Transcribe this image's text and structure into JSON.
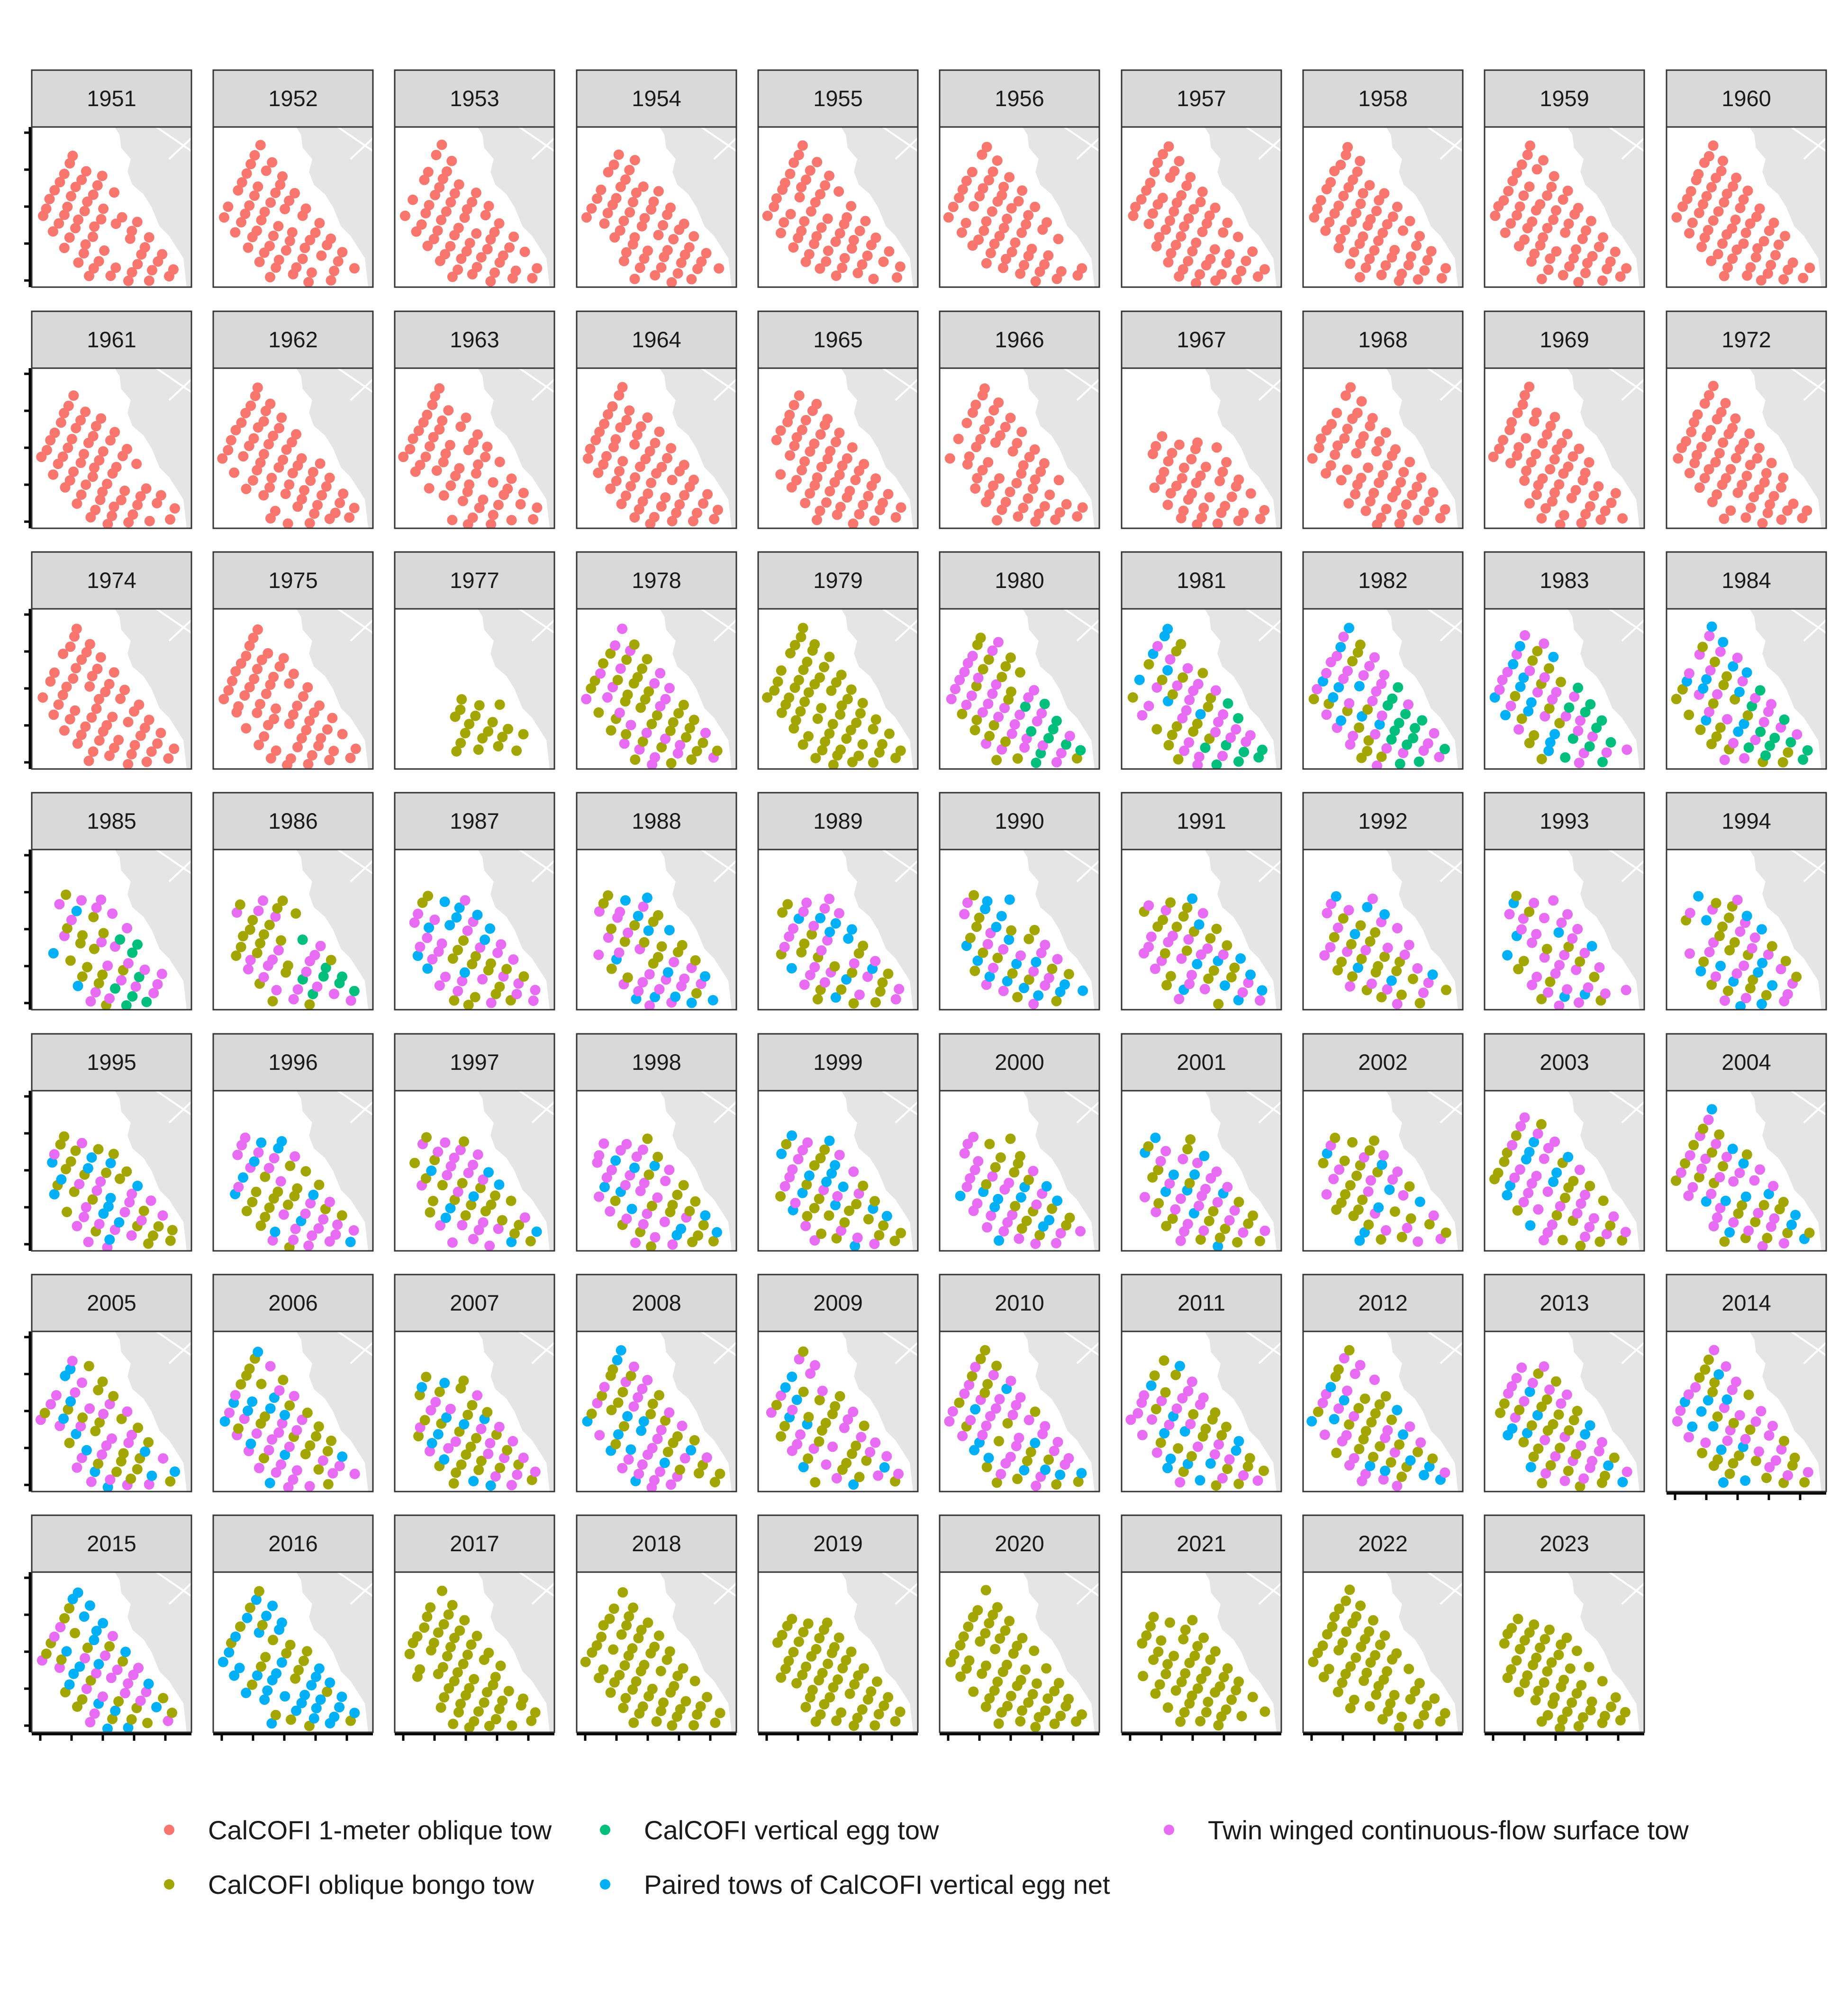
{
  "chart_data": {
    "type": "scatter",
    "facet_variable": "year",
    "panels": [
      "1951",
      "1952",
      "1953",
      "1954",
      "1955",
      "1956",
      "1957",
      "1958",
      "1959",
      "1960",
      "1961",
      "1962",
      "1963",
      "1964",
      "1965",
      "1966",
      "1967",
      "1968",
      "1969",
      "1972",
      "1974",
      "1975",
      "1977",
      "1978",
      "1979",
      "1980",
      "1981",
      "1982",
      "1983",
      "1984",
      "1985",
      "1986",
      "1987",
      "1988",
      "1989",
      "1990",
      "1991",
      "1992",
      "1993",
      "1994",
      "1995",
      "1996",
      "1997",
      "1998",
      "1999",
      "2000",
      "2001",
      "2002",
      "2003",
      "2004",
      "2005",
      "2006",
      "2007",
      "2008",
      "2009",
      "2010",
      "2011",
      "2012",
      "2013",
      "2014",
      "2015",
      "2016",
      "2017",
      "2018",
      "2019",
      "2020",
      "2021",
      "2022",
      "2023"
    ],
    "series": [
      {
        "name": "CalCOFI 1-meter oblique tow",
        "color": "#F8766D"
      },
      {
        "name": "CalCOFI oblique bongo tow",
        "color": "#A3A500"
      },
      {
        "name": "CalCOFI vertical egg tow",
        "color": "#00BF7D"
      },
      {
        "name": "Paired tows of CalCOFI vertical egg net",
        "color": "#00B0F6"
      },
      {
        "name": "Twin winged continuous-flow surface tow",
        "color": "#E76BF3"
      }
    ],
    "panel_series": {
      "1951": [
        "CalCOFI 1-meter oblique tow"
      ],
      "1972": [
        "CalCOFI 1-meter oblique tow"
      ],
      "1975": [
        "CalCOFI 1-meter oblique tow"
      ],
      "1977": [
        "CalCOFI oblique bongo tow"
      ],
      "1978": [
        "CalCOFI oblique bongo tow",
        "Twin winged continuous-flow surface tow"
      ],
      "1980": [
        "CalCOFI oblique bongo tow",
        "CalCOFI vertical egg tow",
        "Twin winged continuous-flow surface tow"
      ],
      "1983": [
        "CalCOFI oblique bongo tow",
        "CalCOFI vertical egg tow",
        "Paired tows of CalCOFI vertical egg net",
        "Twin winged continuous-flow surface tow"
      ],
      "1986": [
        "CalCOFI oblique bongo tow",
        "CalCOFI vertical egg tow",
        "Twin winged continuous-flow surface tow"
      ],
      "1987": [
        "CalCOFI oblique bongo tow",
        "Paired tows of CalCOFI vertical egg net",
        "Twin winged continuous-flow surface tow"
      ],
      "2003": [
        "CalCOFI oblique bongo tow",
        "Paired tows of CalCOFI vertical egg net",
        "Twin winged continuous-flow surface tow"
      ],
      "2015": [
        "CalCOFI oblique bongo tow",
        "Paired tows of CalCOFI vertical egg net",
        "Twin winged continuous-flow surface tow"
      ],
      "2016": [
        "CalCOFI oblique bongo tow",
        "Paired tows of CalCOFI vertical egg net"
      ],
      "2018": [
        "CalCOFI oblique bongo tow"
      ],
      "2023": [
        "CalCOFI oblique bongo tow"
      ]
    },
    "grid": false,
    "legend_position": "bottom",
    "axis_tick_labels_shown": false,
    "panel_background": "white",
    "land_color": "#e5e5e5",
    "strip_background": "#d9d9d9"
  }
}
